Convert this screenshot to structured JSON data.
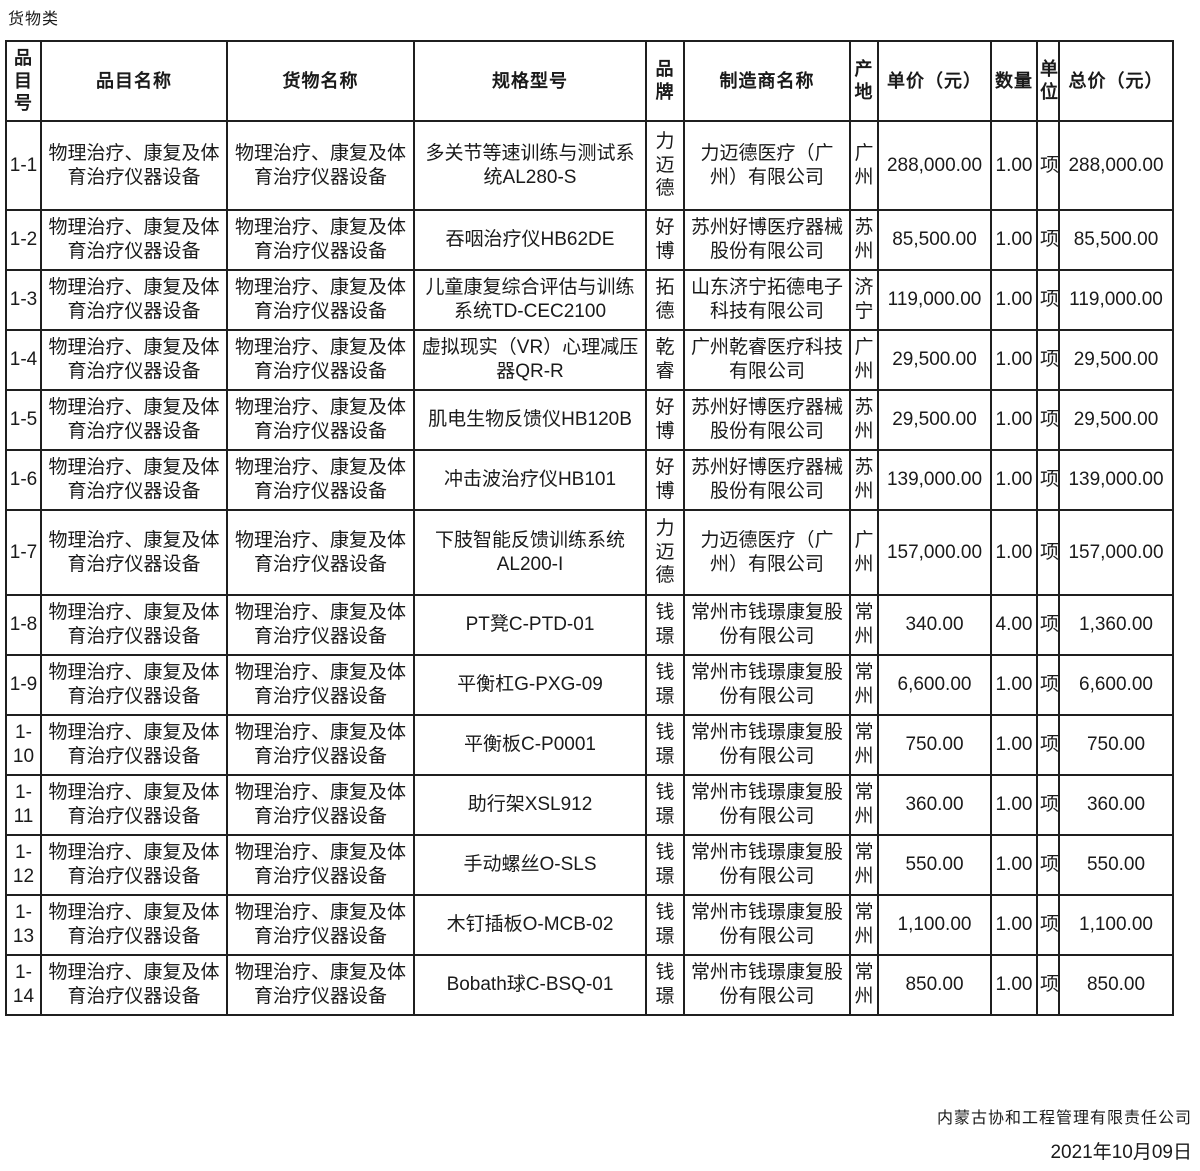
{
  "page_title": "货物类",
  "table": {
    "headers": {
      "no": "品目号",
      "item": "品目名称",
      "goods": "货物名称",
      "spec": "规格型号",
      "brand": "品牌",
      "manufacturer": "制造商名称",
      "origin": "产地",
      "unit_price": "单价（元）",
      "qty": "数量",
      "unit": "单位",
      "total": "总价（元）"
    },
    "rows": [
      {
        "no": "1-1",
        "item": "物理治疗、康复及体育治疗仪器设备",
        "goods": "物理治疗、康复及体育治疗仪器设备",
        "spec": "多关节等速训练与测试系统AL280-S",
        "brand": "力迈德",
        "manufacturer": "力迈德医疗（广州）有限公司",
        "origin": "广州",
        "unit_price": "288,000.00",
        "qty": "1.00",
        "unit": "项",
        "total": "288,000.00"
      },
      {
        "no": "1-2",
        "item": "物理治疗、康复及体育治疗仪器设备",
        "goods": "物理治疗、康复及体育治疗仪器设备",
        "spec": "吞咽治疗仪HB62DE",
        "brand": "好博",
        "manufacturer": "苏州好博医疗器械股份有限公司",
        "origin": "苏州",
        "unit_price": "85,500.00",
        "qty": "1.00",
        "unit": "项",
        "total": "85,500.00"
      },
      {
        "no": "1-3",
        "item": "物理治疗、康复及体育治疗仪器设备",
        "goods": "物理治疗、康复及体育治疗仪器设备",
        "spec": "儿童康复综合评估与训练系统TD-CEC2100",
        "brand": "拓德",
        "manufacturer": "山东济宁拓德电子科技有限公司",
        "origin": "济宁",
        "unit_price": "119,000.00",
        "qty": "1.00",
        "unit": "项",
        "total": "119,000.00"
      },
      {
        "no": "1-4",
        "item": "物理治疗、康复及体育治疗仪器设备",
        "goods": "物理治疗、康复及体育治疗仪器设备",
        "spec": "虚拟现实（VR）心理减压器QR-R",
        "brand": "乾睿",
        "manufacturer": "广州乾睿医疗科技有限公司",
        "origin": "广州",
        "unit_price": "29,500.00",
        "qty": "1.00",
        "unit": "项",
        "total": "29,500.00"
      },
      {
        "no": "1-5",
        "item": "物理治疗、康复及体育治疗仪器设备",
        "goods": "物理治疗、康复及体育治疗仪器设备",
        "spec": "肌电生物反馈仪HB120B",
        "brand": "好博",
        "manufacturer": "苏州好博医疗器械股份有限公司",
        "origin": "苏州",
        "unit_price": "29,500.00",
        "qty": "1.00",
        "unit": "项",
        "total": "29,500.00"
      },
      {
        "no": "1-6",
        "item": "物理治疗、康复及体育治疗仪器设备",
        "goods": "物理治疗、康复及体育治疗仪器设备",
        "spec": "冲击波治疗仪HB101",
        "brand": "好博",
        "manufacturer": "苏州好博医疗器械股份有限公司",
        "origin": "苏州",
        "unit_price": "139,000.00",
        "qty": "1.00",
        "unit": "项",
        "total": "139,000.00"
      },
      {
        "no": "1-7",
        "item": "物理治疗、康复及体育治疗仪器设备",
        "goods": "物理治疗、康复及体育治疗仪器设备",
        "spec": "下肢智能反馈训练系统AL200-I",
        "brand": "力迈德",
        "manufacturer": "力迈德医疗（广州）有限公司",
        "origin": "广州",
        "unit_price": "157,000.00",
        "qty": "1.00",
        "unit": "项",
        "total": "157,000.00"
      },
      {
        "no": "1-8",
        "item": "物理治疗、康复及体育治疗仪器设备",
        "goods": "物理治疗、康复及体育治疗仪器设备",
        "spec": "PT凳C-PTD-01",
        "brand": "钱璟",
        "manufacturer": "常州市钱璟康复股份有限公司",
        "origin": "常州",
        "unit_price": "340.00",
        "qty": "4.00",
        "unit": "项",
        "total": "1,360.00"
      },
      {
        "no": "1-9",
        "item": "物理治疗、康复及体育治疗仪器设备",
        "goods": "物理治疗、康复及体育治疗仪器设备",
        "spec": "平衡杠G-PXG-09",
        "brand": "钱璟",
        "manufacturer": "常州市钱璟康复股份有限公司",
        "origin": "常州",
        "unit_price": "6,600.00",
        "qty": "1.00",
        "unit": "项",
        "total": "6,600.00"
      },
      {
        "no": "1-10",
        "item": "物理治疗、康复及体育治疗仪器设备",
        "goods": "物理治疗、康复及体育治疗仪器设备",
        "spec": "平衡板C-P0001",
        "brand": "钱璟",
        "manufacturer": "常州市钱璟康复股份有限公司",
        "origin": "常州",
        "unit_price": "750.00",
        "qty": "1.00",
        "unit": "项",
        "total": "750.00"
      },
      {
        "no": "1-11",
        "item": "物理治疗、康复及体育治疗仪器设备",
        "goods": "物理治疗、康复及体育治疗仪器设备",
        "spec": "助行架XSL912",
        "brand": "钱璟",
        "manufacturer": "常州市钱璟康复股份有限公司",
        "origin": "常州",
        "unit_price": "360.00",
        "qty": "1.00",
        "unit": "项",
        "total": "360.00"
      },
      {
        "no": "1-12",
        "item": "物理治疗、康复及体育治疗仪器设备",
        "goods": "物理治疗、康复及体育治疗仪器设备",
        "spec": "手动螺丝O-SLS",
        "brand": "钱璟",
        "manufacturer": "常州市钱璟康复股份有限公司",
        "origin": "常州",
        "unit_price": "550.00",
        "qty": "1.00",
        "unit": "项",
        "total": "550.00"
      },
      {
        "no": "1-13",
        "item": "物理治疗、康复及体育治疗仪器设备",
        "goods": "物理治疗、康复及体育治疗仪器设备",
        "spec": "木钉插板O-MCB-02",
        "brand": "钱璟",
        "manufacturer": "常州市钱璟康复股份有限公司",
        "origin": "常州",
        "unit_price": "1,100.00",
        "qty": "1.00",
        "unit": "项",
        "total": "1,100.00"
      },
      {
        "no": "1-14",
        "item": "物理治疗、康复及体育治疗仪器设备",
        "goods": "物理治疗、康复及体育治疗仪器设备",
        "spec": "Bobath球C-BSQ-01",
        "brand": "钱璟",
        "manufacturer": "常州市钱璟康复股份有限公司",
        "origin": "常州",
        "unit_price": "850.00",
        "qty": "1.00",
        "unit": "项",
        "total": "850.00"
      }
    ]
  },
  "footer": {
    "company": "内蒙古协和工程管理有限责任公司",
    "date": "2021年10月09日"
  }
}
